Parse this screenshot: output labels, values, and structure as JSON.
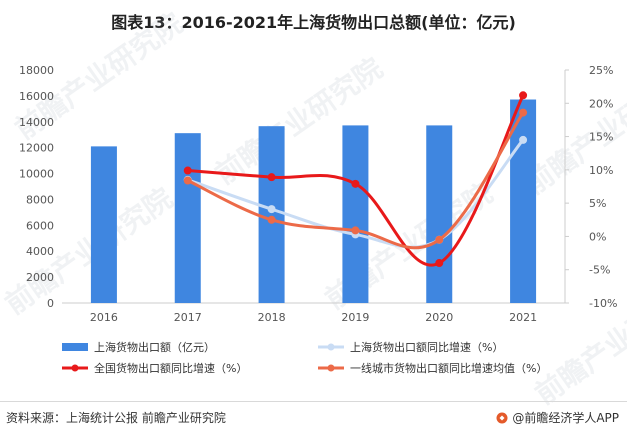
{
  "title": "图表13：2016-2021年上海货物出口总额(单位：亿元)",
  "footer": {
    "source": "资料来源：上海统计公报 前瞻产业研究院",
    "brand": "@前瞻经济学人APP"
  },
  "watermark": "前瞻产业研究院",
  "colors": {
    "bar": "#3f86e0",
    "shanghai_growth": "#c9dcf4",
    "national_growth": "#e8191a",
    "tier1_growth": "#ec6a48",
    "axis": "#cccccc",
    "tick": "#555555"
  },
  "chart_data": {
    "type": "bar",
    "categories": [
      "2016",
      "2017",
      "2018",
      "2019",
      "2020",
      "2021"
    ],
    "title": "图表13：2016-2021年上海货物出口总额(单位：亿元)",
    "xlabel": "",
    "ylabel": "",
    "ylim": [
      0,
      18000
    ],
    "y2lim": [
      -10,
      25
    ],
    "y_ticks": [
      "0",
      "2000",
      "4000",
      "6000",
      "8000",
      "10000",
      "12000",
      "14000",
      "16000",
      "18000"
    ],
    "y2_ticks": [
      "-10%",
      "-5%",
      "0%",
      "5%",
      "10%",
      "15%",
      "20%",
      "25%"
    ],
    "grid": false,
    "legend_position": "bottom",
    "series": [
      {
        "name": "上海货物出口额（亿元）",
        "type": "bar",
        "axis": "left",
        "values": [
          12100,
          13120,
          13660,
          13720,
          13720,
          15720
        ]
      },
      {
        "name": "上海货物出口额同比增速（%）",
        "type": "line",
        "axis": "right",
        "start_index": 1,
        "values": [
          null,
          8.5,
          4.1,
          0.3,
          -0.5,
          14.5
        ]
      },
      {
        "name": "全国货物出口额同比增速（%）",
        "type": "line",
        "axis": "right",
        "start_index": 1,
        "values": [
          null,
          9.9,
          8.9,
          7.9,
          -4.0,
          21.2
        ]
      },
      {
        "name": "一线城市货物出口额同比增速均值（%）",
        "type": "line",
        "axis": "right",
        "start_index": 1,
        "values": [
          null,
          8.4,
          2.5,
          0.9,
          -0.5,
          18.6
        ]
      }
    ]
  }
}
